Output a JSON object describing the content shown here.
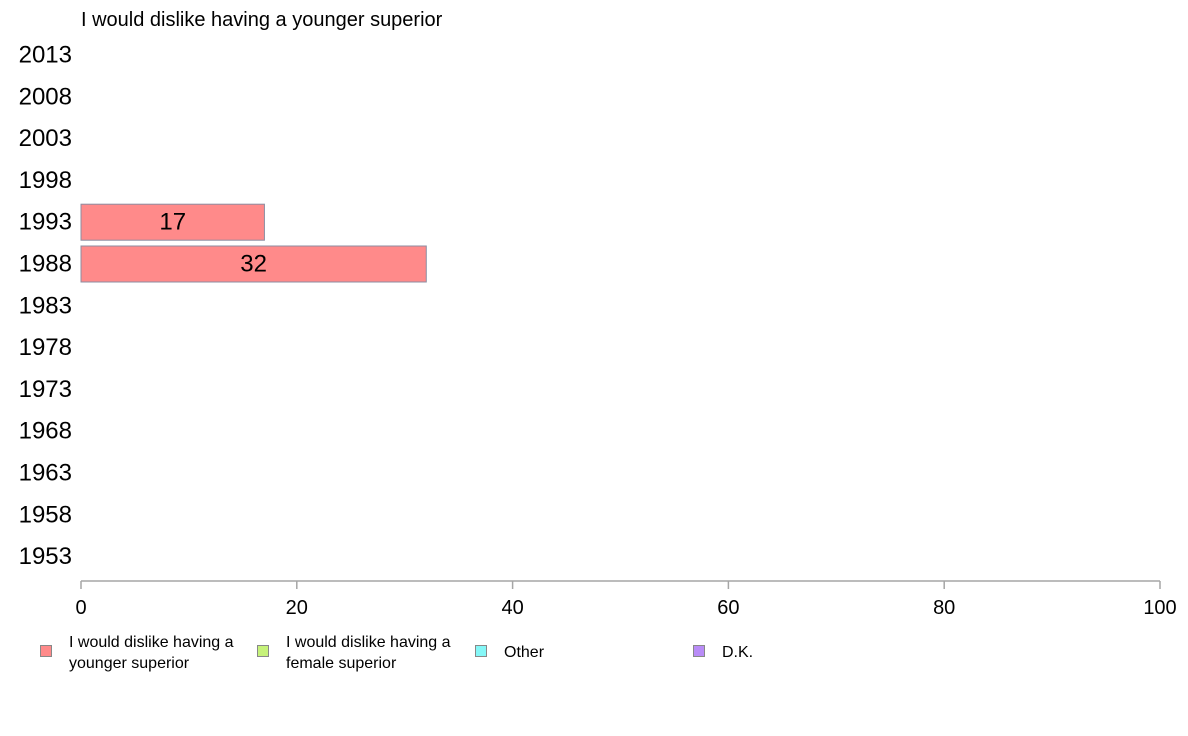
{
  "chart_data": {
    "type": "bar",
    "orientation": "horizontal",
    "title": "I would dislike having a younger superior",
    "categories": [
      "2013",
      "2008",
      "2003",
      "1998",
      "1993",
      "1988",
      "1983",
      "1978",
      "1973",
      "1968",
      "1963",
      "1958",
      "1953"
    ],
    "series": [
      {
        "name": "I would dislike having a younger superior",
        "color": "#ff8a8a",
        "values": [
          null,
          null,
          null,
          null,
          17,
          32,
          null,
          null,
          null,
          null,
          null,
          null,
          null
        ]
      }
    ],
    "xlim": [
      0,
      100
    ],
    "xticks": [
      "0",
      "20",
      "40",
      "60",
      "80",
      "100"
    ],
    "xlabel": "",
    "ylabel": "",
    "grid": false,
    "legend": {
      "position": "bottom",
      "items": [
        {
          "label": "I would dislike having a younger superior",
          "color": "#ff8a8a"
        },
        {
          "label": "I would dislike having a female superior",
          "color": "#c6f27a"
        },
        {
          "label": "Other",
          "color": "#85f7f7"
        },
        {
          "label": "D.K.",
          "color": "#b98cf7"
        }
      ]
    }
  }
}
